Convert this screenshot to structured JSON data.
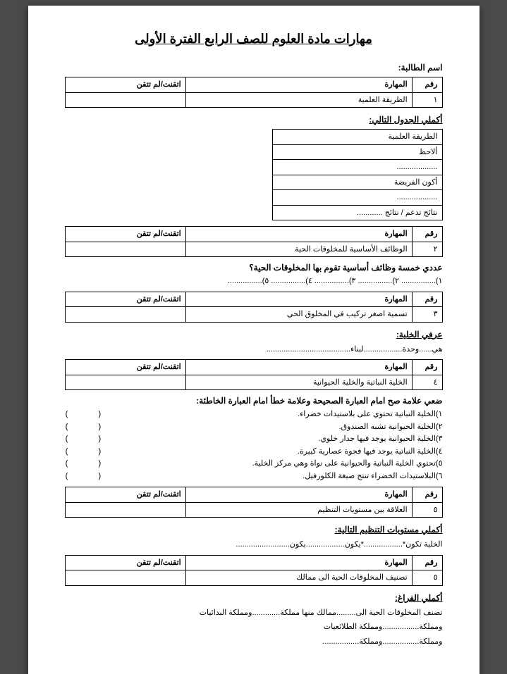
{
  "title": "مهارات مادة العلوم للصف الرابع الفترة الأولى",
  "student_label": "اسم الطالبة:",
  "skill_headers": {
    "num": "رقم",
    "skill": "المهارة",
    "mastery": "اتقنت/لم تتقن"
  },
  "skill1": {
    "num": "١",
    "skill": "الطريقة العلمية"
  },
  "complete_table_label": "أكملي الجدول التالي:",
  "method_rows": [
    "الطريقة العلمية",
    "ألاحظ",
    "...................",
    "أكون الفريضة",
    "...................",
    "نتائج تدعم / نتائج ............"
  ],
  "skill2": {
    "num": "٢",
    "skill": "الوظائف الأساسية للمخلوقات الحية"
  },
  "q_five_functions": "عددي خمسة وظائف أساسية تقوم بها المخلوقات الحية؟",
  "five_blanks": "١)................  ٢)................  ٣)................  ٤)................  ٥)................",
  "skill3": {
    "num": "٣",
    "skill": "تسمية اصغر تركيب في المخلوق الحي"
  },
  "define_cell_label": "عرفي الخلية:",
  "define_cell_line": "هي......وحدة..................لبناء.......................................",
  "skill4": {
    "num": "٤",
    "skill": "الخلية النباتية والخلية الحيوانية"
  },
  "tf_header": "ضعي علامة صح امام العبارة الصحيحة وعلامة خطأ امام العبارة الخاطئة:",
  "tf": [
    "١)الخلية النباتية تحتوي على بلاستيدات خضراء.",
    "٢)الخلية الحيوانية تشبه الصندوق.",
    "٣)الخلية الحيوانية يوجد فيها جدار خلوي.",
    "٤)الخلية النباتية يوجد فيها فجوة عصارية كبيرة.",
    "٥)تحتوي الخلية النباتية والحيوانية على نواة وهي مركز الخلية.",
    "٦)البلاستيدات الخضراء تنتج صبغة الكلورفيل."
  ],
  "paren": "(      )",
  "skill5": {
    "num": "٥",
    "skill": "العلاقة بين مستويات التنظيم"
  },
  "complete_levels_label": "أكملي مستويات التنظيم التالية:",
  "levels_line": "الخلية تكون*..................*يكون..................يكون.........................",
  "skill6": {
    "num": "٥",
    "skill": "تصنيف المخلوقات الحية الى ممالك"
  },
  "fill_blanks_label": "أكملي الفراغ:",
  "fill_line1": "تصنف المخلوقات الحية الى.........ممالك منها مملكة.............ومملكة البدائيات",
  "fill_line2": "ومملكة.................ومملكة الطلائعيات",
  "fill_line3": "ومملكة.................ومملكة................."
}
